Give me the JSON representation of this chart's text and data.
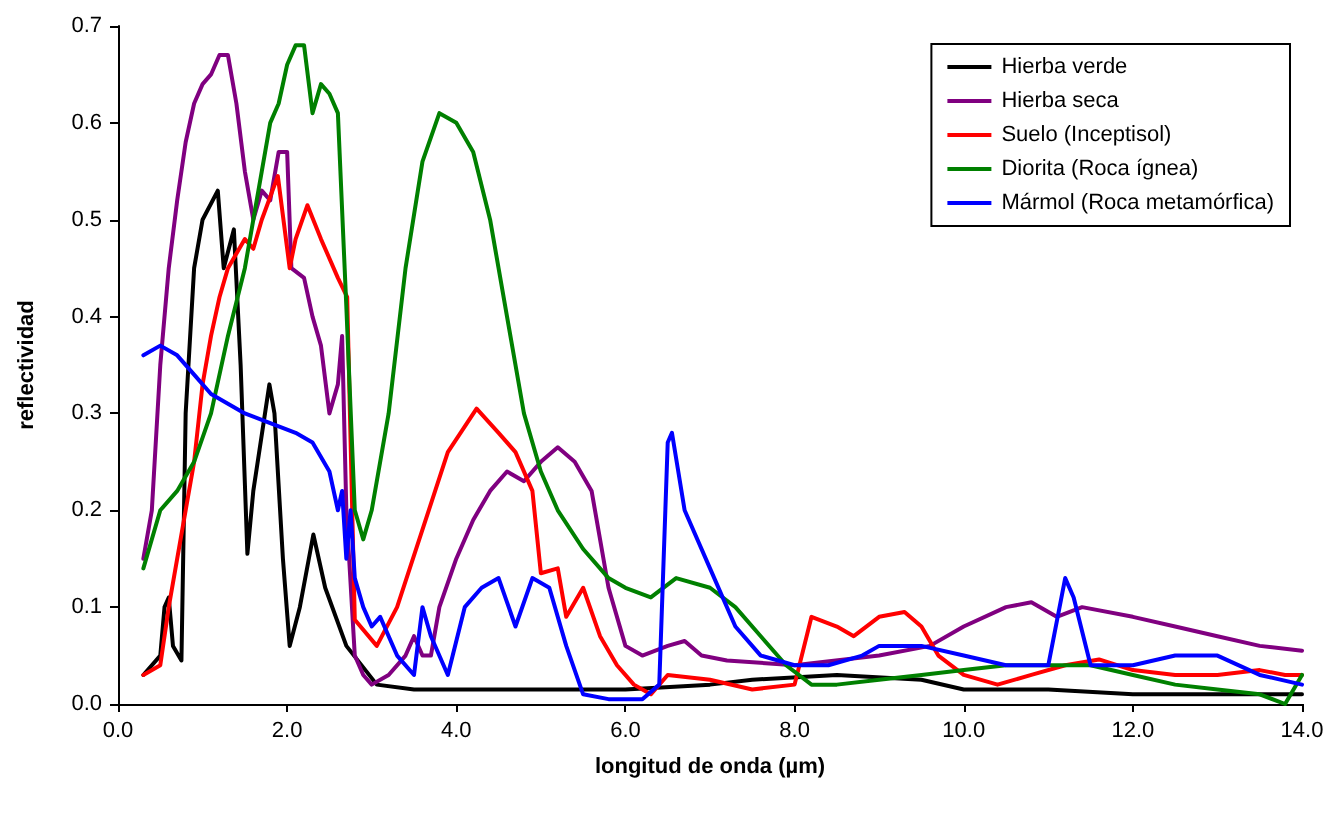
{
  "chart_data": {
    "type": "line",
    "xlabel": "longitud de onda (µm)",
    "ylabel": "reflectividad",
    "xlim": [
      0,
      14
    ],
    "xticks": [
      {
        "value": 0,
        "label": "0.0"
      },
      {
        "value": 2,
        "label": "2.0"
      },
      {
        "value": 4,
        "label": "4.0"
      },
      {
        "value": 6,
        "label": "6.0"
      },
      {
        "value": 8,
        "label": "8.0"
      },
      {
        "value": 10,
        "label": "10.0"
      },
      {
        "value": 12,
        "label": "12.0"
      },
      {
        "value": 14,
        "label": "14.0"
      }
    ],
    "ylim": [
      0,
      0.7
    ],
    "yticks": [
      {
        "value": 0,
        "label": "0.0"
      },
      0.1,
      0.2,
      0.3,
      0.4,
      0.5,
      0.6,
      0.7
    ],
    "grid": false,
    "legend": "top right",
    "marker": "none",
    "line_style": "solid",
    "series": [
      {
        "name": "Hierba verde",
        "color": "#000000",
        "x": [
          0.3,
          0.5,
          0.55,
          0.6,
          0.65,
          0.75,
          0.8,
          0.9,
          1.0,
          1.18,
          1.25,
          1.37,
          1.45,
          1.53,
          1.6,
          1.79,
          1.85,
          1.95,
          2.03,
          2.15,
          2.31,
          2.45,
          2.7,
          3.06,
          3.5,
          4.0,
          5.0,
          6.0,
          7.0,
          7.5,
          8.5,
          9.5,
          10.0,
          11.0,
          12.0,
          13.0,
          14.0
        ],
        "values": [
          0.03,
          0.05,
          0.1,
          0.11,
          0.06,
          0.045,
          0.3,
          0.45,
          0.5,
          0.53,
          0.45,
          0.49,
          0.35,
          0.155,
          0.22,
          0.33,
          0.3,
          0.15,
          0.06,
          0.1,
          0.175,
          0.12,
          0.06,
          0.02,
          0.015,
          0.015,
          0.015,
          0.015,
          0.02,
          0.025,
          0.03,
          0.025,
          0.015,
          0.015,
          0.01,
          0.01,
          0.01
        ]
      },
      {
        "name": "Hierba seca",
        "color": "#800080",
        "x": [
          0.3,
          0.4,
          0.5,
          0.6,
          0.7,
          0.8,
          0.9,
          1.0,
          1.1,
          1.2,
          1.3,
          1.4,
          1.5,
          1.6,
          1.7,
          1.8,
          1.9,
          2.0,
          2.05,
          2.2,
          2.3,
          2.4,
          2.5,
          2.6,
          2.65,
          2.7,
          2.8,
          2.9,
          3.0,
          3.2,
          3.4,
          3.5,
          3.6,
          3.7,
          3.8,
          4.0,
          4.2,
          4.4,
          4.6,
          4.8,
          5.0,
          5.2,
          5.4,
          5.6,
          5.8,
          6.0,
          6.2,
          6.5,
          6.7,
          6.9,
          7.2,
          8.0,
          9.0,
          9.6,
          10.0,
          10.5,
          10.8,
          11.1,
          11.4,
          12.0,
          12.5,
          13.0,
          13.5,
          14.0
        ],
        "values": [
          0.15,
          0.2,
          0.35,
          0.45,
          0.52,
          0.58,
          0.62,
          0.64,
          0.65,
          0.67,
          0.67,
          0.62,
          0.55,
          0.5,
          0.53,
          0.52,
          0.57,
          0.57,
          0.45,
          0.44,
          0.4,
          0.37,
          0.3,
          0.33,
          0.38,
          0.2,
          0.05,
          0.03,
          0.02,
          0.03,
          0.05,
          0.07,
          0.05,
          0.05,
          0.1,
          0.15,
          0.19,
          0.22,
          0.24,
          0.23,
          0.25,
          0.265,
          0.25,
          0.22,
          0.12,
          0.06,
          0.05,
          0.06,
          0.065,
          0.05,
          0.045,
          0.04,
          0.05,
          0.06,
          0.08,
          0.1,
          0.105,
          0.09,
          0.1,
          0.09,
          0.08,
          0.07,
          0.06,
          0.055
        ]
      },
      {
        "name": "Suelo (Inceptisol)",
        "color": "#ff0000",
        "x": [
          0.3,
          0.5,
          0.6,
          0.7,
          0.9,
          1.0,
          1.1,
          1.2,
          1.3,
          1.5,
          1.6,
          1.7,
          1.89,
          2.03,
          2.1,
          2.24,
          2.4,
          2.6,
          2.71,
          2.8,
          3.06,
          3.3,
          3.6,
          3.9,
          4.24,
          4.5,
          4.7,
          4.9,
          5.0,
          5.2,
          5.3,
          5.5,
          5.7,
          5.9,
          6.1,
          6.3,
          6.5,
          7.0,
          7.5,
          8.0,
          8.2,
          8.5,
          8.7,
          9.0,
          9.3,
          9.5,
          9.7,
          10.0,
          10.4,
          10.8,
          11.2,
          11.6,
          12.0,
          12.5,
          13.0,
          13.5,
          13.8,
          14.0
        ],
        "values": [
          0.03,
          0.04,
          0.1,
          0.15,
          0.25,
          0.33,
          0.38,
          0.42,
          0.45,
          0.48,
          0.47,
          0.5,
          0.545,
          0.45,
          0.48,
          0.515,
          0.48,
          0.44,
          0.42,
          0.087,
          0.06,
          0.1,
          0.18,
          0.26,
          0.305,
          0.28,
          0.26,
          0.22,
          0.135,
          0.14,
          0.09,
          0.12,
          0.07,
          0.04,
          0.02,
          0.01,
          0.03,
          0.025,
          0.015,
          0.02,
          0.09,
          0.08,
          0.07,
          0.09,
          0.095,
          0.08,
          0.05,
          0.03,
          0.02,
          0.03,
          0.04,
          0.046,
          0.035,
          0.03,
          0.03,
          0.035,
          0.03,
          0.03
        ]
      },
      {
        "name": "Diorita (Roca ígnea)",
        "color": "#008000",
        "x": [
          0.3,
          0.5,
          0.7,
          0.9,
          1.1,
          1.3,
          1.5,
          1.7,
          1.8,
          1.9,
          2.0,
          2.1,
          2.2,
          2.3,
          2.4,
          2.5,
          2.6,
          2.7,
          2.8,
          2.9,
          3.0,
          3.2,
          3.4,
          3.6,
          3.8,
          4.0,
          4.2,
          4.4,
          4.6,
          4.8,
          5.0,
          5.2,
          5.5,
          5.8,
          6.0,
          6.3,
          6.6,
          7.0,
          7.3,
          7.6,
          7.9,
          8.2,
          8.5,
          9.0,
          9.5,
          10.0,
          10.5,
          11.0,
          11.5,
          12.0,
          12.5,
          13.0,
          13.5,
          13.8,
          14.0
        ],
        "values": [
          0.14,
          0.2,
          0.22,
          0.25,
          0.3,
          0.38,
          0.45,
          0.55,
          0.6,
          0.62,
          0.66,
          0.68,
          0.68,
          0.61,
          0.64,
          0.63,
          0.61,
          0.41,
          0.2,
          0.17,
          0.2,
          0.3,
          0.45,
          0.56,
          0.61,
          0.6,
          0.57,
          0.5,
          0.4,
          0.3,
          0.24,
          0.2,
          0.16,
          0.13,
          0.12,
          0.11,
          0.13,
          0.12,
          0.1,
          0.07,
          0.04,
          0.02,
          0.02,
          0.025,
          0.03,
          0.035,
          0.04,
          0.04,
          0.04,
          0.03,
          0.02,
          0.015,
          0.01,
          0.0,
          0.03
        ]
      },
      {
        "name": "Mármol (Roca metamórfica)",
        "color": "#0000ff",
        "x": [
          0.3,
          0.5,
          0.7,
          0.9,
          1.1,
          1.3,
          1.5,
          1.8,
          2.1,
          2.3,
          2.5,
          2.6,
          2.65,
          2.7,
          2.75,
          2.8,
          2.9,
          3.0,
          3.1,
          3.3,
          3.5,
          3.6,
          3.7,
          3.9,
          4.1,
          4.3,
          4.5,
          4.7,
          4.9,
          5.1,
          5.3,
          5.5,
          5.8,
          6.2,
          6.4,
          6.5,
          6.55,
          6.7,
          7.0,
          7.3,
          7.6,
          8.0,
          8.4,
          8.8,
          9.0,
          9.5,
          10.0,
          10.5,
          11.0,
          11.2,
          11.3,
          11.5,
          12.0,
          12.5,
          13.0,
          13.5,
          14.0
        ],
        "values": [
          0.36,
          0.37,
          0.36,
          0.34,
          0.32,
          0.31,
          0.3,
          0.29,
          0.28,
          0.27,
          0.24,
          0.2,
          0.22,
          0.15,
          0.2,
          0.13,
          0.1,
          0.08,
          0.09,
          0.05,
          0.03,
          0.1,
          0.07,
          0.03,
          0.1,
          0.12,
          0.13,
          0.08,
          0.13,
          0.12,
          0.06,
          0.01,
          0.005,
          0.005,
          0.02,
          0.27,
          0.28,
          0.2,
          0.14,
          0.08,
          0.05,
          0.04,
          0.04,
          0.05,
          0.06,
          0.06,
          0.05,
          0.04,
          0.04,
          0.13,
          0.11,
          0.04,
          0.04,
          0.05,
          0.05,
          0.03,
          0.02
        ]
      }
    ]
  }
}
